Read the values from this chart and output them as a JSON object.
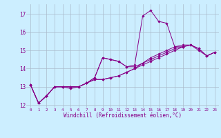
{
  "xlabel": "Windchill (Refroidissement éolien,°C)",
  "background_color": "#cceeff",
  "grid_color": "#aabbcc",
  "line_color": "#880088",
  "xlim": [
    -0.5,
    23.5
  ],
  "ylim": [
    11.85,
    17.55
  ],
  "yticks": [
    12,
    13,
    14,
    15,
    16,
    17
  ],
  "xticks": [
    0,
    1,
    2,
    3,
    4,
    5,
    6,
    7,
    8,
    9,
    10,
    11,
    12,
    13,
    14,
    15,
    16,
    17,
    18,
    19,
    20,
    21,
    22,
    23
  ],
  "series": [
    [
      13.1,
      12.1,
      12.5,
      13.0,
      13.0,
      13.0,
      13.0,
      13.2,
      13.5,
      14.6,
      14.5,
      14.4,
      14.1,
      14.1,
      14.3,
      14.5,
      14.7,
      14.9,
      15.1,
      15.2,
      15.3,
      15.0,
      14.7,
      14.9
    ],
    [
      13.1,
      12.1,
      12.5,
      13.0,
      13.0,
      13.0,
      13.0,
      13.2,
      13.5,
      14.6,
      14.5,
      14.4,
      14.1,
      14.2,
      16.9,
      17.2,
      16.6,
      16.5,
      15.2,
      15.2,
      null,
      null,
      null,
      null
    ],
    [
      13.1,
      12.1,
      12.5,
      13.0,
      13.0,
      12.9,
      13.0,
      13.2,
      13.4,
      13.4,
      13.5,
      13.6,
      13.8,
      14.0,
      14.3,
      14.6,
      14.8,
      15.0,
      15.2,
      15.3,
      15.3,
      15.1,
      14.7,
      14.9
    ],
    [
      13.1,
      12.1,
      12.5,
      13.0,
      13.0,
      13.0,
      13.0,
      13.2,
      13.4,
      13.4,
      13.5,
      13.6,
      13.8,
      14.0,
      14.2,
      14.4,
      14.6,
      14.8,
      15.0,
      15.2,
      15.3,
      15.1,
      14.7,
      14.9
    ]
  ]
}
